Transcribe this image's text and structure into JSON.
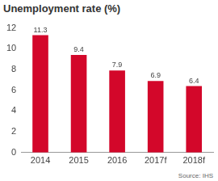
{
  "chart_data": {
    "type": "bar",
    "title": "Unemployment rate (%)",
    "categories": [
      "2014",
      "2015",
      "2016",
      "2017f",
      "2018f"
    ],
    "values": [
      11.3,
      9.4,
      7.9,
      6.9,
      6.4
    ],
    "color": "#d3072a",
    "ylim": [
      0,
      12
    ],
    "yticks": [
      0,
      2,
      4,
      6,
      8,
      10,
      12
    ],
    "grid": false,
    "data_labels": true,
    "annotations": [
      "Source: IHS"
    ]
  }
}
